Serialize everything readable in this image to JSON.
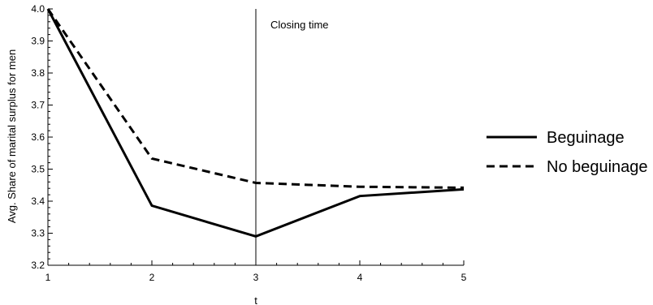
{
  "chart_data": {
    "type": "line",
    "title": "",
    "xlabel": "t",
    "ylabel": "Avg. Share of marital surplus for men",
    "x": [
      1,
      2,
      3,
      4,
      5
    ],
    "xlim": [
      1,
      5
    ],
    "ylim": [
      3.2,
      4.0
    ],
    "xticks": [
      "1",
      "2",
      "3",
      "4",
      "5"
    ],
    "yticks": [
      "3.2",
      "3.3",
      "3.4",
      "3.5",
      "3.6",
      "3.7",
      "3.8",
      "3.9",
      "4.0"
    ],
    "grid": false,
    "legend_position": "right",
    "series": [
      {
        "name": "Beguinage",
        "style": "solid",
        "color": "#000000",
        "values": [
          4.0,
          3.386,
          3.29,
          3.416,
          3.437
        ]
      },
      {
        "name": "No beguinage",
        "style": "dashed",
        "color": "#000000",
        "values": [
          4.0,
          3.533,
          3.457,
          3.445,
          3.442
        ]
      }
    ],
    "annotations": [
      {
        "type": "vline",
        "x": 3,
        "label": "Closing time"
      }
    ]
  }
}
